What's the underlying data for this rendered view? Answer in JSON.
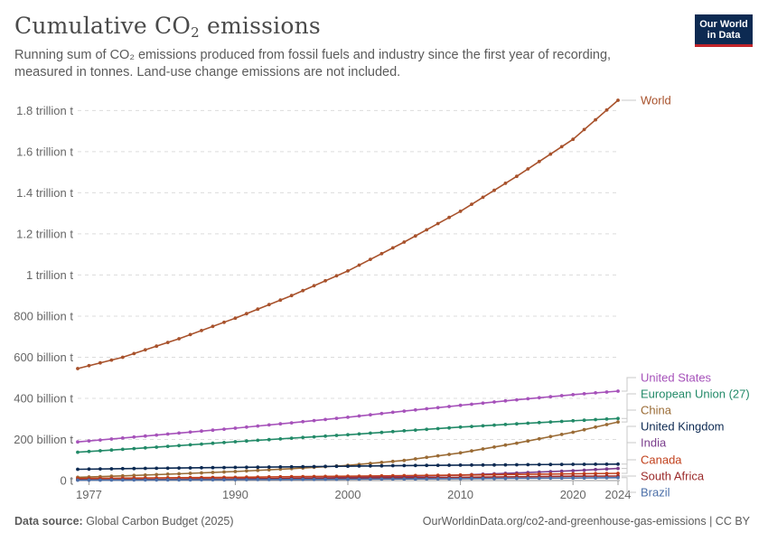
{
  "header": {
    "title_main": "Cumulative CO",
    "title_sub": "2",
    "title_rest": " emissions",
    "subtitle_line1": "Running sum of CO₂ emissions produced from fossil fuels and industry since the first year of recording,",
    "subtitle_line2": "measured in tonnes. Land-use change emissions are not included."
  },
  "logo": {
    "line1": "Our World",
    "line2": "in Data"
  },
  "footer": {
    "source_label": "Data source:",
    "source_value": " Global Carbon Budget (2025)",
    "url": "OurWorldinData.org/co2-and-greenhouse-gas-emissions | CC BY"
  },
  "chart_data": {
    "type": "line",
    "xlim": [
      1976,
      2024
    ],
    "ylim": [
      0,
      1850000000000.0
    ],
    "x_ticks": [
      {
        "value": 1977,
        "label": "1977"
      },
      {
        "value": 1990,
        "label": "1990"
      },
      {
        "value": 2000,
        "label": "2000"
      },
      {
        "value": 2010,
        "label": "2010"
      },
      {
        "value": 2020,
        "label": "2020"
      },
      {
        "value": 2024,
        "label": "2024"
      }
    ],
    "y_ticks": [
      {
        "value": 0,
        "label": "0 t"
      },
      {
        "value": 200000000000.0,
        "label": "200 billion t"
      },
      {
        "value": 400000000000.0,
        "label": "400 billion t"
      },
      {
        "value": 600000000000.0,
        "label": "600 billion t"
      },
      {
        "value": 800000000000.0,
        "label": "800 billion t"
      },
      {
        "value": 1000000000000.0,
        "label": "1 trillion t"
      },
      {
        "value": 1200000000000.0,
        "label": "1.2 trillion t"
      },
      {
        "value": 1400000000000.0,
        "label": "1.4 trillion t"
      },
      {
        "value": 1600000000000.0,
        "label": "1.6 trillion t"
      },
      {
        "value": 1800000000000.0,
        "label": "1.8 trillion t"
      }
    ],
    "grid": true,
    "series": [
      {
        "name": "World",
        "color": "#a8522c",
        "points": [
          [
            1976,
            545000000000.0
          ],
          [
            1980,
            600000000000.0
          ],
          [
            1985,
            690000000000.0
          ],
          [
            1990,
            790000000000.0
          ],
          [
            1995,
            900000000000.0
          ],
          [
            2000,
            1020000000000.0
          ],
          [
            2005,
            1160000000000.0
          ],
          [
            2010,
            1310000000000.0
          ],
          [
            2015,
            1480000000000.0
          ],
          [
            2020,
            1660000000000.0
          ],
          [
            2024,
            1850000000000.0
          ]
        ]
      },
      {
        "name": "United States",
        "color": "#a652ba",
        "points": [
          [
            1976,
            188000000000.0
          ],
          [
            1980,
            207000000000.0
          ],
          [
            1985,
            231000000000.0
          ],
          [
            1990,
            255000000000.0
          ],
          [
            1995,
            281000000000.0
          ],
          [
            2000,
            308000000000.0
          ],
          [
            2005,
            338000000000.0
          ],
          [
            2010,
            366000000000.0
          ],
          [
            2015,
            393000000000.0
          ],
          [
            2020,
            418000000000.0
          ],
          [
            2024,
            435000000000.0
          ]
        ]
      },
      {
        "name": "European Union (27)",
        "color": "#228a68",
        "points": [
          [
            1976,
            138000000000.0
          ],
          [
            1980,
            152000000000.0
          ],
          [
            1985,
            170000000000.0
          ],
          [
            1990,
            189000000000.0
          ],
          [
            1995,
            206000000000.0
          ],
          [
            2000,
            223000000000.0
          ],
          [
            2005,
            242000000000.0
          ],
          [
            2010,
            260000000000.0
          ],
          [
            2015,
            276000000000.0
          ],
          [
            2020,
            291000000000.0
          ],
          [
            2024,
            302000000000.0
          ]
        ]
      },
      {
        "name": "China",
        "color": "#9a6b35",
        "points": [
          [
            1976,
            16000000000.0
          ],
          [
            1980,
            23000000000.0
          ],
          [
            1985,
            33000000000.0
          ],
          [
            1990,
            44000000000.0
          ],
          [
            1995,
            58000000000.0
          ],
          [
            2000,
            74000000000.0
          ],
          [
            2005,
            98000000000.0
          ],
          [
            2010,
            135000000000.0
          ],
          [
            2015,
            182000000000.0
          ],
          [
            2020,
            235000000000.0
          ],
          [
            2024,
            285000000000.0
          ]
        ]
      },
      {
        "name": "United Kingdom",
        "color": "#0d2a52",
        "points": [
          [
            1976,
            55000000000.0
          ],
          [
            1980,
            58000000000.0
          ],
          [
            1985,
            61000000000.0
          ],
          [
            1990,
            64000000000.0
          ],
          [
            1995,
            67000000000.0
          ],
          [
            2000,
            70000000000.0
          ],
          [
            2005,
            73000000000.0
          ],
          [
            2010,
            75000000000.0
          ],
          [
            2015,
            77000000000.0
          ],
          [
            2020,
            79000000000.0
          ],
          [
            2024,
            80000000000.0
          ]
        ]
      },
      {
        "name": "India",
        "color": "#7a3d8c",
        "points": [
          [
            1976,
            3000000000.0
          ],
          [
            1980,
            4000000000.0
          ],
          [
            1985,
            5500000000.0
          ],
          [
            1990,
            8000000000.0
          ],
          [
            1995,
            11000000000.0
          ],
          [
            2000,
            15000000000.0
          ],
          [
            2005,
            20000000000.0
          ],
          [
            2010,
            27000000000.0
          ],
          [
            2015,
            37000000000.0
          ],
          [
            2020,
            48000000000.0
          ],
          [
            2024,
            59000000000.0
          ]
        ]
      },
      {
        "name": "Canada",
        "color": "#c1401c",
        "points": [
          [
            1976,
            10000000000.0
          ],
          [
            1980,
            12000000000.0
          ],
          [
            1985,
            14000000000.0
          ],
          [
            1990,
            16000000000.0
          ],
          [
            1995,
            19000000000.0
          ],
          [
            2000,
            21000000000.0
          ],
          [
            2005,
            24000000000.0
          ],
          [
            2010,
            27000000000.0
          ],
          [
            2015,
            30000000000.0
          ],
          [
            2020,
            33000000000.0
          ],
          [
            2024,
            35000000000.0
          ]
        ]
      },
      {
        "name": "South Africa",
        "color": "#9b2a2a",
        "points": [
          [
            1976,
            4000000000.0
          ],
          [
            1980,
            5000000000.0
          ],
          [
            1985,
            6500000000.0
          ],
          [
            1990,
            8500000000.0
          ],
          [
            1995,
            10000000000.0
          ],
          [
            2000,
            12000000000.0
          ],
          [
            2005,
            14000000000.0
          ],
          [
            2010,
            16000000000.0
          ],
          [
            2015,
            18500000000.0
          ],
          [
            2020,
            21000000000.0
          ],
          [
            2024,
            22000000000.0
          ]
        ]
      },
      {
        "name": "Brazil",
        "color": "#4b6fa8",
        "points": [
          [
            1976,
            2000000000.0
          ],
          [
            1980,
            2800000000.0
          ],
          [
            1985,
            3500000000.0
          ],
          [
            1990,
            4300000000.0
          ],
          [
            1995,
            5300000000.0
          ],
          [
            2000,
            6500000000.0
          ],
          [
            2005,
            7800000000.0
          ],
          [
            2010,
            9300000000.0
          ],
          [
            2015,
            11000000000.0
          ],
          [
            2020,
            12500000000.0
          ],
          [
            2024,
            14000000000.0
          ]
        ]
      }
    ]
  }
}
